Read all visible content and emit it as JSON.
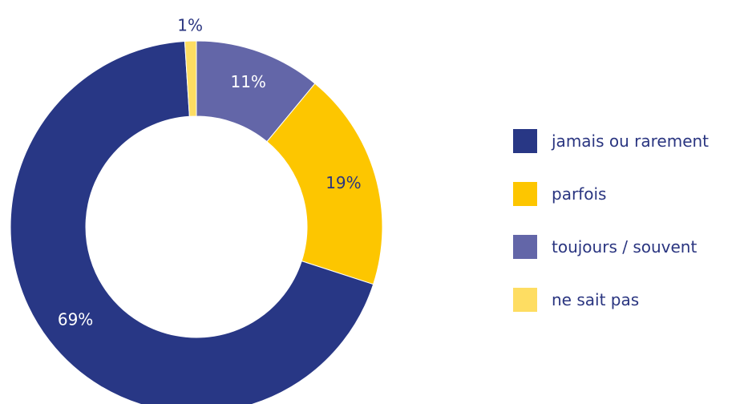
{
  "chart_data": {
    "type": "pie",
    "donut": true,
    "legend_position": "right",
    "slices": [
      {
        "name": "toujours / souvent",
        "value": 11,
        "label": "11%",
        "color": "#6366a8",
        "label_color": "#ffffff"
      },
      {
        "name": "parfois",
        "value": 19,
        "label": "19%",
        "color": "#fdc600",
        "label_color": "#2a3580"
      },
      {
        "name": "jamais ou rarement",
        "value": 69,
        "label": "69%",
        "color": "#283785",
        "label_color": "#ffffff"
      },
      {
        "name": "ne sait pas",
        "value": 1,
        "label": "1%",
        "color": "#fedd62",
        "label_color": "#2a3580"
      }
    ],
    "legend": [
      {
        "name": "jamais ou rarement",
        "color": "#283785"
      },
      {
        "name": "parfois",
        "color": "#fdc600"
      },
      {
        "name": "toujours / souvent",
        "color": "#6366a8"
      },
      {
        "name": "ne sait pas",
        "color": "#fedd62"
      }
    ]
  }
}
